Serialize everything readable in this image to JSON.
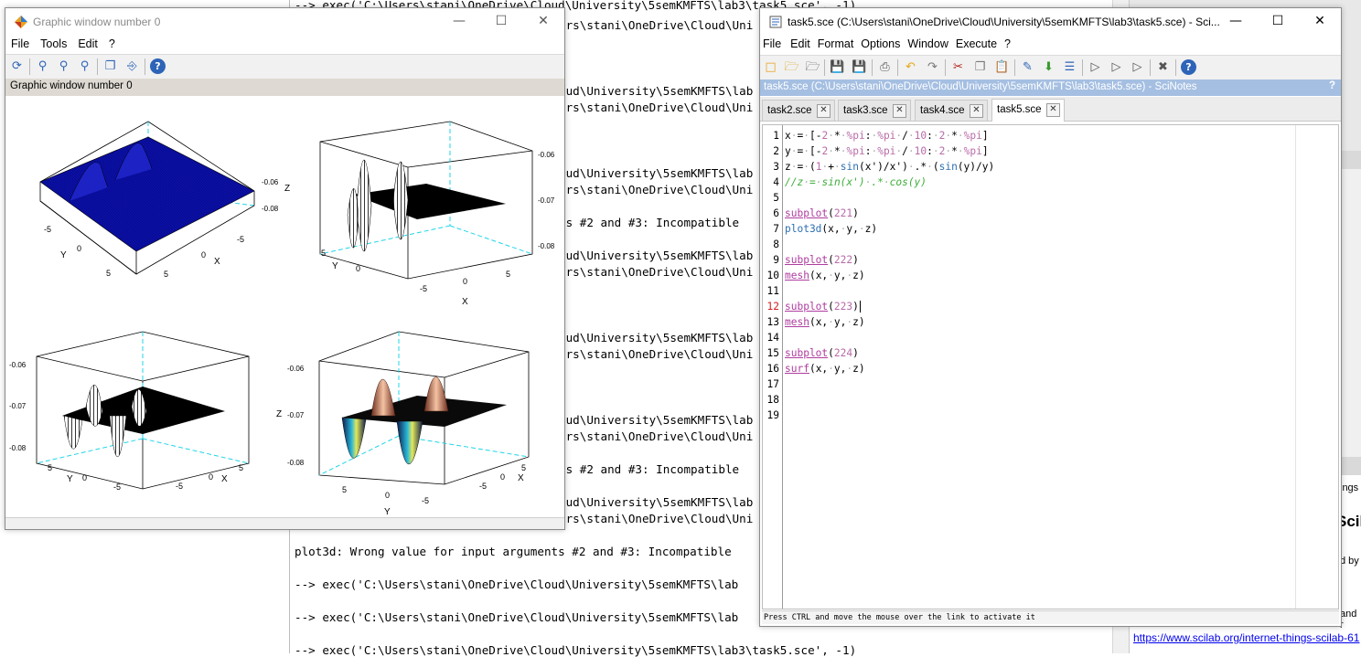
{
  "console": {
    "lines": [
      "--> exec('C:\\Users\\stani\\OneDrive\\Cloud\\University\\5semKMFTS\\lab3\\task5.sce', -1)",
      "ers\\stani\\OneDrive\\Cloud\\Uni",
      "oud\\University\\5semKMFTS\\lab",
      "ers\\stani\\OneDrive\\Cloud\\Uni",
      "oud\\University\\5semKMFTS\\lab",
      "ers\\stani\\OneDrive\\Cloud\\Uni",
      "ts #2 and #3: Incompatible",
      "oud\\University\\5semKMFTS\\lab",
      "ers\\stani\\OneDrive\\Cloud\\Uni",
      "oud\\University\\5semKMFTS\\lab",
      "ers\\stani\\OneDrive\\Cloud\\Uni",
      "oud\\University\\5semKMFTS\\lab",
      "ers\\stani\\OneDrive\\Cloud\\Uni",
      "ts #2 and #3: Incompatible",
      "oud\\University\\5semKMFTS\\lab",
      "ers\\stani\\OneDrive\\Cloud\\Uni",
      "plot3d: Wrong value for input arguments #2 and #3: Incompatible",
      "--> exec('C:\\Users\\stani\\OneDrive\\Cloud\\University\\5semKMFTS\\lab",
      "--> exec('C:\\Users\\stani\\OneDrive\\Cloud\\University\\5semKMFTS\\lab",
      "--> exec('C:\\Users\\stani\\OneDrive\\Cloud\\University\\5semKMFTS\\lab3\\task5.sce', -1)"
    ]
  },
  "right_panel": {
    "link": "https://www.scilab.org/internet-things-scilab-61",
    "fragments": [
      "ings",
      "Scil",
      "d by",
      "and r"
    ]
  },
  "graphic_window": {
    "title": "Graphic window number 0",
    "menu": [
      "File",
      "Tools",
      "Edit",
      "?"
    ],
    "toolbar_icons": [
      "rotate-icon",
      "zoom-in-icon",
      "zoom-fit-icon",
      "zoom-out-icon",
      "datatip-icon",
      "axes-editor-icon",
      "help-icon"
    ],
    "info_label": "Graphic window number 0",
    "plots": {
      "p1": {
        "z_ticks": [
          "-0.06",
          "-0.08"
        ],
        "z_label": "Z",
        "y_ticks": [
          "-5",
          "0",
          "5"
        ],
        "y_label": "Y",
        "x_ticks": [
          "5",
          "0",
          "-5"
        ],
        "x_label": "X"
      },
      "p2": {
        "z_ticks": [
          "-0.06",
          "-0.07",
          "-0.08"
        ],
        "y_ticks": [
          "5",
          "0"
        ],
        "y_label": "Y",
        "x_ticks": [
          "-5",
          "0",
          "5"
        ],
        "x_label": "X"
      },
      "p3": {
        "z_ticks": [
          "-0.06",
          "-0.07",
          "-0.08"
        ],
        "y_ticks": [
          "5",
          "0",
          "-5"
        ],
        "y_label": "Y",
        "x_ticks": [
          "-5",
          "0",
          "5"
        ],
        "x_label": "X"
      },
      "p4": {
        "z_ticks": [
          "-0.06",
          "-0.07",
          "-0.08"
        ],
        "z_label": "Z",
        "y_ticks": [
          "5",
          "0",
          "-5"
        ],
        "y_label": "Y",
        "x_ticks": [
          "-5",
          "0",
          "5"
        ],
        "x_label": "X"
      }
    }
  },
  "scinotes": {
    "title": "task5.sce (C:\\Users\\stani\\OneDrive\\Cloud\\University\\5semKMFTS\\lab3\\task5.sce) - Sci...",
    "menu": [
      "File",
      "Edit",
      "Format",
      "Options",
      "Window",
      "Execute",
      "?"
    ],
    "path_bar": "task5.sce (C:\\Users\\stani\\OneDrive\\Cloud\\University\\5semKMFTS\\lab3\\task5.sce) - SciNotes",
    "path_bar_help": "?",
    "tabs": [
      "task2.sce",
      "task3.sce",
      "task4.sce",
      "task5.sce"
    ],
    "active_tab": "task5.sce",
    "current_line": 12,
    "line_numbers": [
      "1",
      "2",
      "3",
      "4",
      "5",
      "6",
      "7",
      "8",
      "9",
      "10",
      "11",
      "12",
      "13",
      "14",
      "15",
      "16",
      "17",
      "18",
      "19"
    ],
    "status": "Press CTRL and move the mouse over the link to activate it"
  },
  "colors": {
    "surface_blue": "#0b10a8",
    "bar_blue": "#a5bfe2",
    "axis_dashed": "#1fd5e8"
  }
}
